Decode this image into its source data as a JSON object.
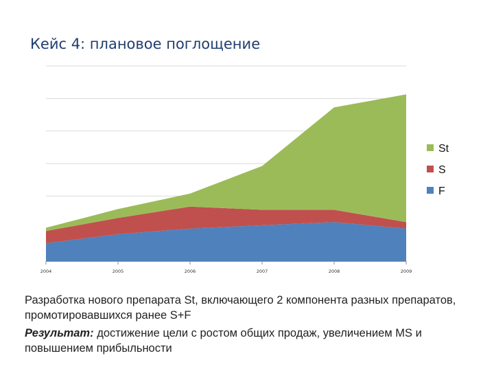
{
  "slide": {
    "title": "Кейс 4: плановое поглощение"
  },
  "chart_data": {
    "type": "area",
    "stacked": true,
    "categories": [
      "2004",
      "2005",
      "2006",
      "2007",
      "2008",
      "2009"
    ],
    "series": [
      {
        "name": "F",
        "color": "#4f81bd",
        "values": [
          22,
          33,
          40,
          44,
          48,
          40
        ]
      },
      {
        "name": "S",
        "color": "#c0504d",
        "values": [
          15,
          20,
          27,
          19,
          15,
          8
        ]
      },
      {
        "name": "St",
        "color": "#9bbb59",
        "values": [
          4,
          11,
          16,
          54,
          126,
          157
        ]
      }
    ],
    "ylim": [
      0,
      240
    ],
    "yticks": [
      0,
      40,
      80,
      120,
      160,
      200,
      240
    ],
    "grid": true,
    "legend": "right"
  },
  "caption": {
    "line1": "Разработка нового препарата St, включающего 2 компонента разных препаратов, промотировавшихся ранее S+F",
    "result_label": "Результат:",
    "result_text": " достижение цели с ростом общих продаж, увеличением MS и повышением прибыльности"
  }
}
